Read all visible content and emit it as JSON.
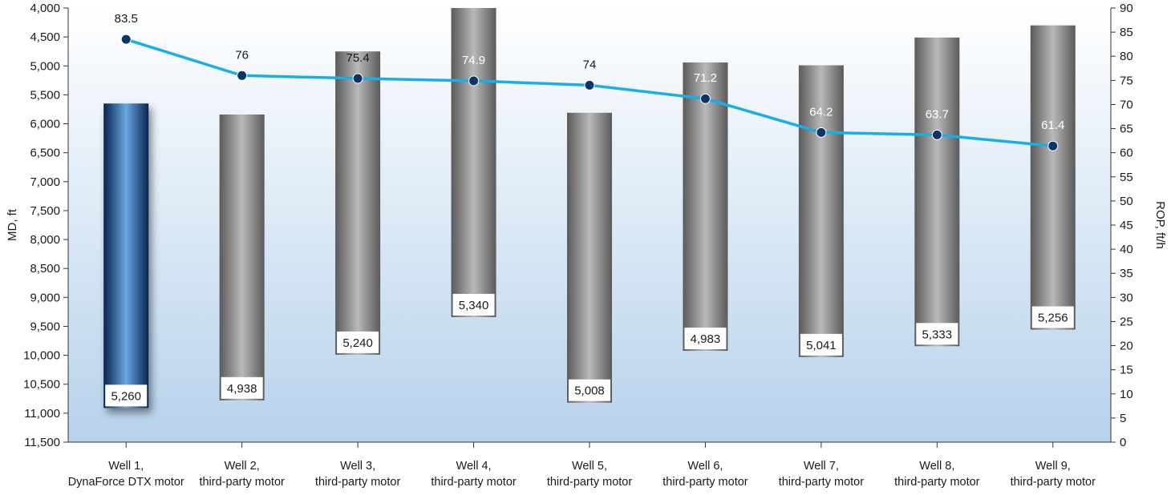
{
  "chart_data": {
    "type": "bar",
    "categories": [
      [
        "Well 1,",
        "DynaForce DTX motor"
      ],
      [
        "Well 2,",
        "third-party motor"
      ],
      [
        "Well 3,",
        "third-party motor"
      ],
      [
        "Well 4,",
        "third-party motor"
      ],
      [
        "Well 5,",
        "third-party motor"
      ],
      [
        "Well 6,",
        "third-party motor"
      ],
      [
        "Well 7,",
        "third-party motor"
      ],
      [
        "Well 8,",
        "third-party motor"
      ],
      [
        "Well 9,",
        "third-party motor"
      ]
    ],
    "left_axis": {
      "label": "MD, ft",
      "ylim": [
        4000,
        11500
      ],
      "reversed": true,
      "ticks": [
        "4,000",
        "4,500",
        "5,000",
        "5,500",
        "6,000",
        "6,500",
        "7,000",
        "7,500",
        "8,000",
        "8,500",
        "9,000",
        "9,500",
        "10,000",
        "10,500",
        "11,000",
        "11,500"
      ]
    },
    "right_axis": {
      "label": "ROP, ft/h",
      "ylim": [
        0,
        90
      ],
      "ticks": [
        "0",
        "5",
        "10",
        "15",
        "20",
        "25",
        "30",
        "35",
        "40",
        "45",
        "50",
        "55",
        "60",
        "65",
        "70",
        "75",
        "80",
        "85",
        "90"
      ]
    },
    "bars": {
      "md_start": [
        5650,
        5840,
        4750,
        4000,
        5810,
        4940,
        4990,
        4510,
        4300
      ],
      "md_end": [
        10910,
        10778,
        9990,
        9340,
        10818,
        9923,
        10031,
        9843,
        9556
      ],
      "interval_labels": [
        "5,260",
        "4,938",
        "5,240",
        "5,340",
        "5,008",
        "4,983",
        "5,041",
        "5,333",
        "5,256"
      ],
      "highlight_color": "#0a3a78",
      "default_color": "#7a7a7a"
    },
    "series": [
      {
        "type": "line",
        "axis": "right",
        "values": [
          83.5,
          76,
          75.4,
          74.9,
          74,
          71.2,
          64.2,
          63.7,
          61.4
        ],
        "labels": [
          "83.5",
          "76",
          "75.4",
          "74.9",
          "74",
          "71.2",
          "64.2",
          "63.7",
          "61.4"
        ],
        "color": "#1aaee6",
        "marker_color": "#0b3566"
      }
    ],
    "grid": false,
    "background_gradient": [
      "#ffffff",
      "#b7d2ec"
    ]
  }
}
